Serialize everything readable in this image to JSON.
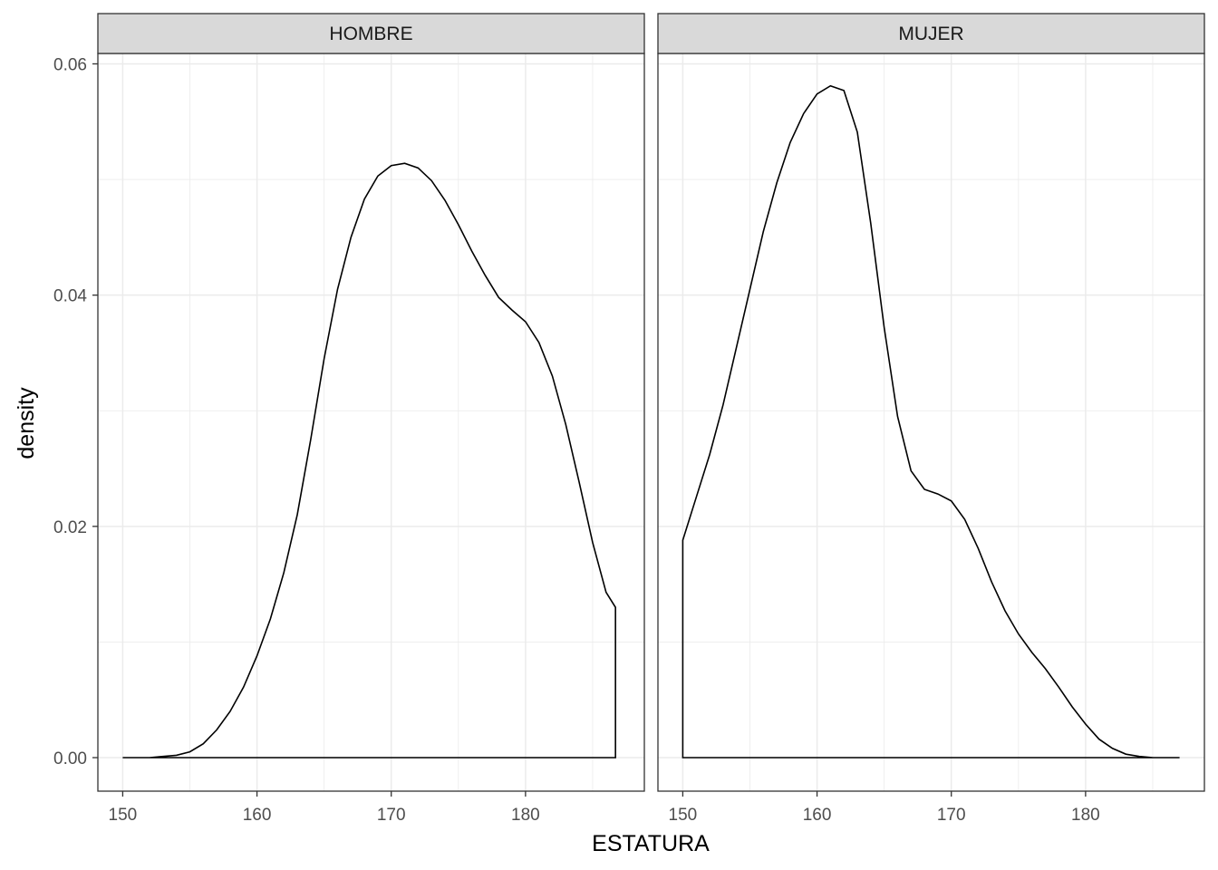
{
  "chart_data": {
    "type": "area",
    "xlabel": "ESTATURA",
    "ylabel": "density",
    "xlim": [
      148.15,
      188.85
    ],
    "ylim": [
      -0.0029,
      0.0609
    ],
    "x_ticks": [
      150,
      160,
      170,
      180
    ],
    "y_ticks": [
      0.0,
      0.02,
      0.04,
      0.06
    ],
    "y_tick_labels": [
      "0.00",
      "0.02",
      "0.04",
      "0.06"
    ],
    "grid": true,
    "facets": [
      {
        "label": "HOMBRE",
        "x_range": [
          150,
          187
        ],
        "points": [
          [
            150,
            0
          ],
          [
            152,
            0
          ],
          [
            153,
            0.0001
          ],
          [
            154,
            0.0002
          ],
          [
            155,
            0.0005
          ],
          [
            156,
            0.0012
          ],
          [
            157,
            0.0024
          ],
          [
            158,
            0.004
          ],
          [
            159,
            0.0061
          ],
          [
            160,
            0.0088
          ],
          [
            161,
            0.012
          ],
          [
            162,
            0.016
          ],
          [
            163,
            0.021
          ],
          [
            164,
            0.0275
          ],
          [
            165,
            0.0345
          ],
          [
            166,
            0.0405
          ],
          [
            167,
            0.045
          ],
          [
            168,
            0.0483
          ],
          [
            169,
            0.0503
          ],
          [
            170,
            0.0512
          ],
          [
            171,
            0.0514
          ],
          [
            172,
            0.051
          ],
          [
            173,
            0.0499
          ],
          [
            174,
            0.0482
          ],
          [
            175,
            0.0461
          ],
          [
            176,
            0.0438
          ],
          [
            177,
            0.0417
          ],
          [
            178,
            0.0398
          ],
          [
            179,
            0.0387
          ],
          [
            180,
            0.0377
          ],
          [
            181,
            0.0359
          ],
          [
            182,
            0.033
          ],
          [
            183,
            0.0288
          ],
          [
            184,
            0.0238
          ],
          [
            185,
            0.0186
          ],
          [
            186,
            0.0143
          ],
          [
            186.7,
            0.013
          ]
        ]
      },
      {
        "label": "MUJER",
        "x_range": [
          150,
          187
        ],
        "points": [
          [
            150,
            0.0188
          ],
          [
            151,
            0.0225
          ],
          [
            152,
            0.0262
          ],
          [
            153,
            0.0305
          ],
          [
            154,
            0.0355
          ],
          [
            155,
            0.0405
          ],
          [
            156,
            0.0455
          ],
          [
            157,
            0.0497
          ],
          [
            158,
            0.0532
          ],
          [
            159,
            0.0557
          ],
          [
            160,
            0.0574
          ],
          [
            161,
            0.0581
          ],
          [
            162,
            0.0577
          ],
          [
            163,
            0.0541
          ],
          [
            164,
            0.0462
          ],
          [
            165,
            0.0372
          ],
          [
            166,
            0.0295
          ],
          [
            167,
            0.0248
          ],
          [
            168,
            0.0232
          ],
          [
            169,
            0.0228
          ],
          [
            170,
            0.0222
          ],
          [
            171,
            0.0206
          ],
          [
            172,
            0.0181
          ],
          [
            173,
            0.0152
          ],
          [
            174,
            0.0127
          ],
          [
            175,
            0.0107
          ],
          [
            176,
            0.0091
          ],
          [
            177,
            0.0077
          ],
          [
            178,
            0.0061
          ],
          [
            179,
            0.0044
          ],
          [
            180,
            0.0029
          ],
          [
            181,
            0.0016
          ],
          [
            182,
            0.0008
          ],
          [
            183,
            0.0003
          ],
          [
            184,
            0.0001
          ],
          [
            185,
            0
          ],
          [
            187,
            0
          ]
        ]
      }
    ]
  }
}
